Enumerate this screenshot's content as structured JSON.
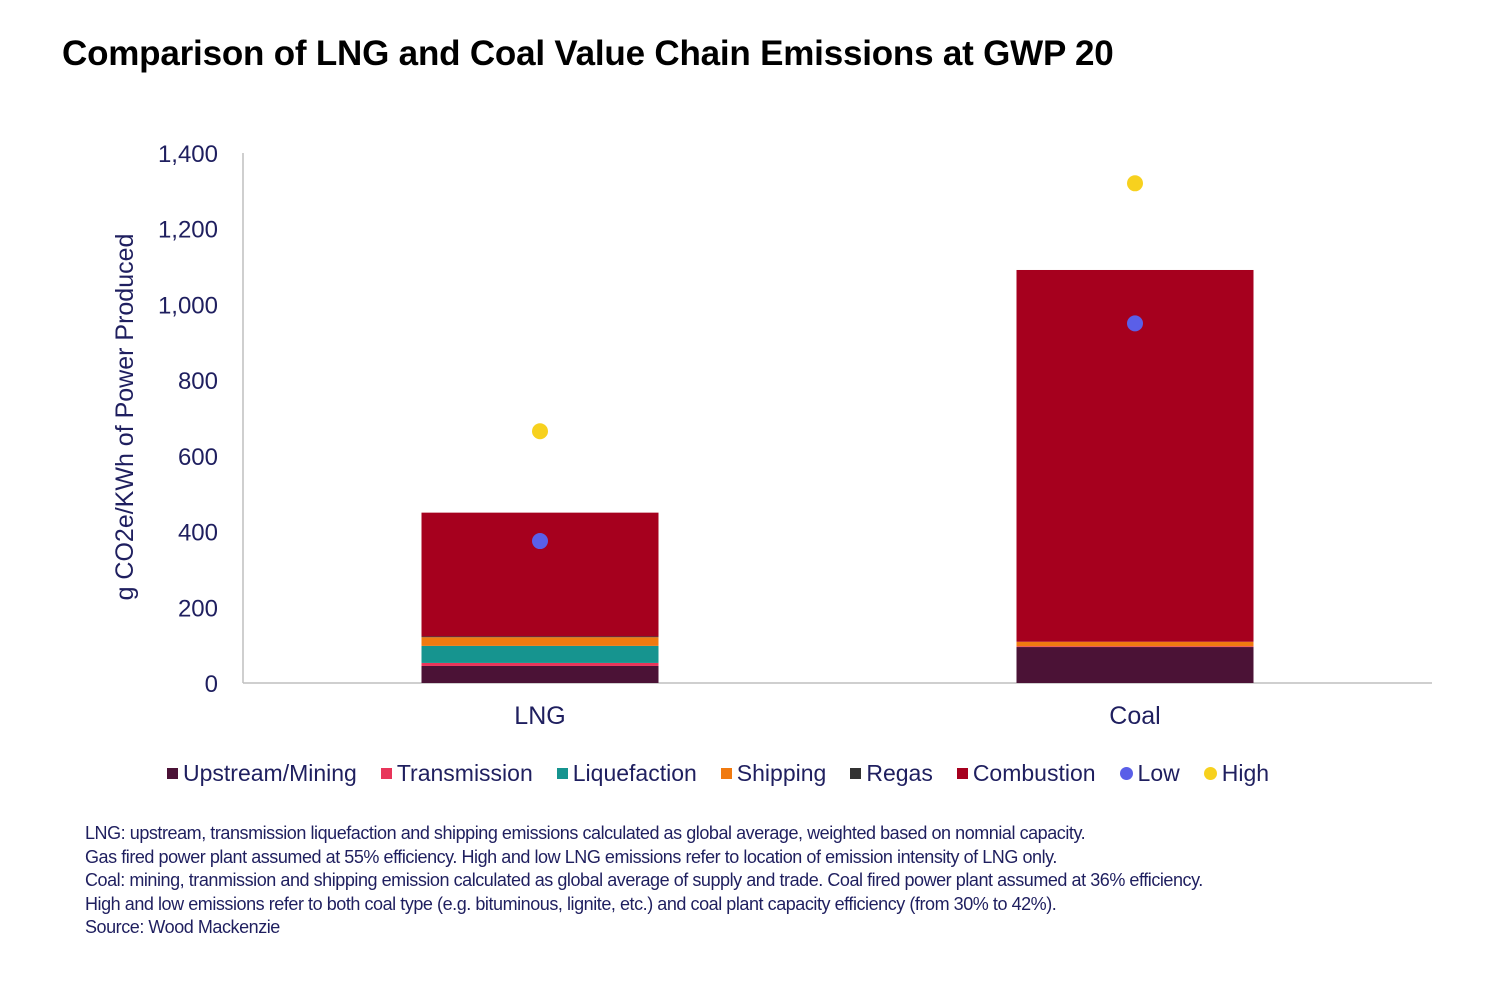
{
  "title": "Comparison of LNG and Coal Value Chain Emissions at GWP 20",
  "chart_data": {
    "type": "bar",
    "stacked": true,
    "title": "Comparison of LNG and Coal Value Chain Emissions at GWP 20",
    "xlabel": "",
    "ylabel": "g CO2e/KWh of Power Produced",
    "ylim": [
      0,
      1400
    ],
    "yticks": [
      0,
      200,
      400,
      600,
      800,
      1000,
      1200,
      1400
    ],
    "ytick_labels": [
      "0",
      "200",
      "400",
      "600",
      "800",
      "1,000",
      "1,200",
      "1,400"
    ],
    "categories": [
      "LNG",
      "Coal"
    ],
    "series": [
      {
        "name": "Upstream/Mining",
        "color": "#4b1236",
        "values": [
          45,
          95
        ]
      },
      {
        "name": "Transmission",
        "color": "#e8355a",
        "values": [
          8,
          2
        ]
      },
      {
        "name": "Liquefaction",
        "color": "#16948f",
        "values": [
          45,
          0
        ]
      },
      {
        "name": "Shipping",
        "color": "#f07a10",
        "values": [
          23,
          12
        ]
      },
      {
        "name": "Regas",
        "color": "#333333",
        "values": [
          2,
          0
        ]
      },
      {
        "name": "Combustion",
        "color": "#a6001e",
        "values": [
          327,
          982
        ]
      }
    ],
    "markers": [
      {
        "name": "Low",
        "color": "#5a5fe8",
        "values": [
          375,
          950
        ]
      },
      {
        "name": "High",
        "color": "#f7d11e",
        "values": [
          665,
          1320
        ]
      }
    ],
    "grid": false,
    "legend_position": "bottom"
  },
  "footnotes": [
    "LNG: upstream, transmission liquefaction and shipping emissions calculated as global average, weighted based on nomnial capacity.",
    "Gas fired power plant assumed at 55% efficiency. High and low LNG emissions refer to location of emission intensity of LNG only.",
    "Coal: mining, tranmission and shipping emission calculated as global average of supply and trade. Coal fired power plant assumed at 36% efficiency.",
    "High and low emissions refer to both coal type (e.g. bituminous, lignite, etc.) and coal plant capacity efficiency (from 30% to 42%).",
    "Source: Wood Mackenzie"
  ]
}
